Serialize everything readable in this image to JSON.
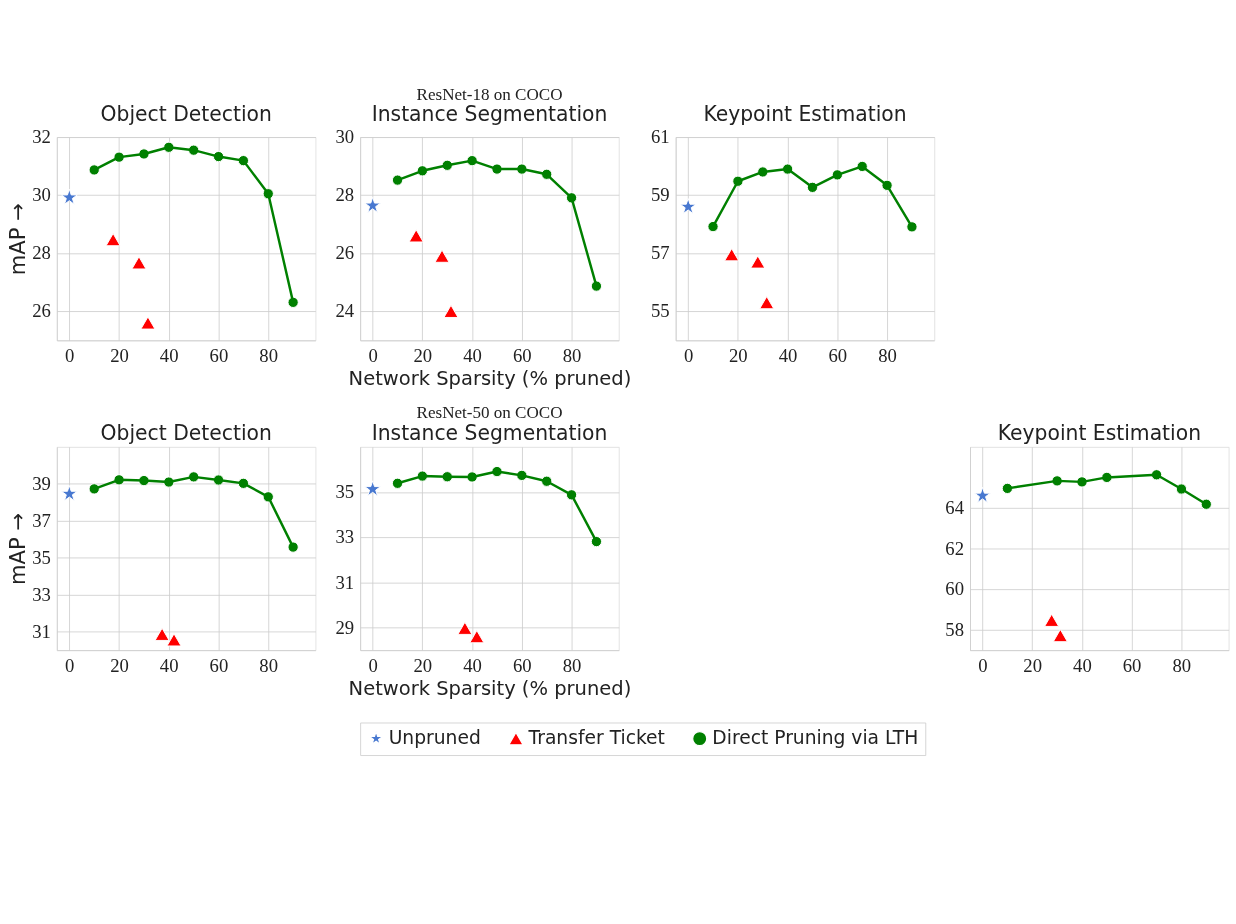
{
  "chart_data": [
    {
      "type": "line",
      "title": "Object Detection",
      "ylabel": "mAP →",
      "xlim": [
        -5,
        99
      ],
      "xticks": [
        0,
        20,
        40,
        60,
        80
      ],
      "ylim": [
        25,
        32
      ],
      "yticks": [
        26,
        28,
        30,
        32
      ],
      "grid": true,
      "series": [
        {
          "type": "scatter",
          "marker": "star",
          "color": "#4878d0",
          "x": [
            0
          ],
          "values": [
            29.92
          ]
        },
        {
          "type": "scatter",
          "marker": "triangle",
          "color": "#ff0000",
          "x": [
            17.6,
            28,
            31.6
          ],
          "values": [
            28.47,
            27.67,
            25.6
          ]
        },
        {
          "type": "line",
          "marker": "circle",
          "line_style": "solid",
          "color": "#008000",
          "x": [
            10,
            20,
            30,
            40,
            50,
            60,
            70,
            80,
            90
          ],
          "values": [
            30.87,
            31.31,
            31.42,
            31.65,
            31.55,
            31.33,
            31.19,
            30.05,
            26.31
          ]
        }
      ]
    },
    {
      "type": "line",
      "title": "ResNet-18 on COCO",
      "subtitle": "Instance Segmentation",
      "xlabel": "Network Sparsity (% pruned)",
      "xlim": [
        -5,
        99
      ],
      "xticks": [
        0,
        20,
        40,
        60,
        80
      ],
      "ylim": [
        23,
        30
      ],
      "yticks": [
        24,
        26,
        28,
        30
      ],
      "grid": true,
      "series": [
        {
          "type": "scatter",
          "marker": "star",
          "color": "#4878d0",
          "x": [
            0
          ],
          "values": [
            27.64
          ]
        },
        {
          "type": "scatter",
          "marker": "triangle",
          "color": "#ff0000",
          "x": [
            17.5,
            27.9,
            31.5
          ],
          "values": [
            26.6,
            25.9,
            24.0
          ]
        },
        {
          "type": "line",
          "marker": "circle",
          "line_style": "solid",
          "color": "#008000",
          "x": [
            10,
            20,
            30,
            40,
            50,
            60,
            70,
            80,
            90
          ],
          "values": [
            28.52,
            28.84,
            29.03,
            29.19,
            28.9,
            28.9,
            28.72,
            27.91,
            24.87
          ]
        }
      ]
    },
    {
      "type": "line",
      "title": "Keypoint Estimation",
      "xlim": [
        -5,
        99
      ],
      "xticks": [
        0,
        20,
        40,
        60,
        80
      ],
      "ylim": [
        54,
        61
      ],
      "yticks": [
        55,
        57,
        59,
        61
      ],
      "grid": true,
      "series": [
        {
          "type": "scatter",
          "marker": "star",
          "color": "#4878d0",
          "x": [
            0
          ],
          "values": [
            58.6
          ]
        },
        {
          "type": "scatter",
          "marker": "triangle",
          "color": "#ff0000",
          "x": [
            17.5,
            28,
            31.6
          ],
          "values": [
            56.95,
            56.7,
            55.3
          ]
        },
        {
          "type": "line",
          "marker": "circle",
          "line_style": "solid",
          "color": "#008000",
          "x": [
            10,
            20,
            30,
            40,
            50,
            60,
            70,
            80,
            90
          ],
          "values": [
            57.92,
            59.48,
            59.8,
            59.9,
            59.27,
            59.7,
            59.99,
            59.34,
            57.91
          ]
        }
      ]
    },
    {
      "type": "line",
      "title": "Object Detection",
      "ylabel": "mAP →",
      "xlim": [
        -5,
        99
      ],
      "xticks": [
        0,
        20,
        40,
        60,
        80
      ],
      "ylim": [
        30,
        41
      ],
      "yticks": [
        31,
        33,
        35,
        37,
        39
      ],
      "grid": true,
      "series": [
        {
          "type": "scatter",
          "marker": "star",
          "color": "#4878d0",
          "x": [
            0
          ],
          "values": [
            38.46
          ]
        },
        {
          "type": "scatter",
          "marker": "triangle",
          "color": "#ff0000",
          "x": [
            37.3,
            42.1
          ],
          "values": [
            30.86,
            30.56
          ]
        },
        {
          "type": "line",
          "marker": "circle",
          "line_style": "solid",
          "color": "#008000",
          "x": [
            10,
            20,
            30,
            40,
            50,
            60,
            70,
            80,
            90
          ],
          "values": [
            38.73,
            39.22,
            39.18,
            39.1,
            39.38,
            39.21,
            39.03,
            38.3,
            35.58
          ]
        }
      ]
    },
    {
      "type": "line",
      "title": "ResNet-50 on COCO",
      "subtitle": "Instance Segmentation",
      "xlabel": "Network Sparsity (% pruned)",
      "xlim": [
        -5,
        99
      ],
      "xticks": [
        0,
        20,
        40,
        60,
        80
      ],
      "ylim": [
        28,
        37
      ],
      "yticks": [
        29,
        31,
        33,
        35
      ],
      "grid": true,
      "legend": "bottom",
      "series": [
        {
          "name": "Unpruned",
          "type": "scatter",
          "marker": "star",
          "color": "#4878d0",
          "x": [
            0
          ],
          "values": [
            35.13
          ]
        },
        {
          "name": "Transfer Ticket",
          "type": "scatter",
          "marker": "triangle",
          "color": "#ff0000",
          "x": [
            37.1,
            41.9
          ],
          "values": [
            28.97,
            28.6
          ]
        },
        {
          "name": "Direct Pruning via LTH",
          "type": "line",
          "marker": "circle",
          "line_style": "solid",
          "color": "#008000",
          "x": [
            10,
            20,
            30,
            40,
            50,
            60,
            70,
            80,
            90
          ],
          "values": [
            35.39,
            35.71,
            35.68,
            35.67,
            35.91,
            35.74,
            35.48,
            34.88,
            32.81
          ]
        }
      ]
    },
    {
      "type": "line",
      "title": "Keypoint Estimation",
      "xlim": [
        -5,
        99
      ],
      "xticks": [
        0,
        20,
        40,
        60,
        80
      ],
      "ylim": [
        57,
        67
      ],
      "yticks": [
        58,
        60,
        62,
        64
      ],
      "grid": true,
      "series": [
        {
          "type": "scatter",
          "marker": "star",
          "color": "#4878d0",
          "x": [
            0
          ],
          "values": [
            64.6
          ]
        },
        {
          "type": "scatter",
          "marker": "triangle",
          "color": "#ff0000",
          "x": [
            27.8,
            31.3
          ],
          "values": [
            58.47,
            57.72
          ]
        },
        {
          "type": "line",
          "marker": "circle",
          "line_style": "solid",
          "color": "#008000",
          "x": [
            10,
            30,
            40,
            50,
            70,
            80,
            90
          ],
          "values": [
            64.96,
            65.33,
            65.28,
            65.5,
            65.63,
            64.93,
            64.18
          ]
        }
      ]
    }
  ]
}
